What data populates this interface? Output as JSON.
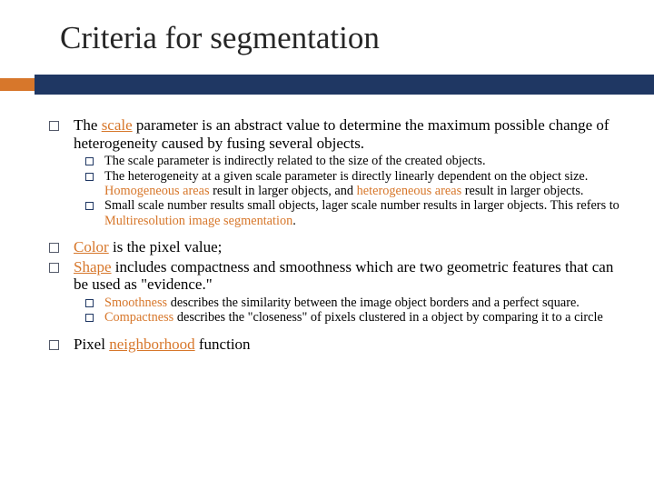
{
  "slide": {
    "title": "Criteria for segmentation",
    "title_fontsize": 35,
    "title_color": "#262626",
    "bar": {
      "orange": "#d7772b",
      "blue": "#1f3763",
      "orange_width": 38,
      "blue_height": 22,
      "orange_height": 14
    },
    "body_fontsize_l1": 17,
    "body_fontsize_l2": 14.3,
    "highlight_color": "#d7772b",
    "bullets": [
      {
        "text_parts": [
          {
            "t": "The ",
            "hl": false,
            "u": false
          },
          {
            "t": "scale",
            "hl": true,
            "u": true
          },
          {
            "t": " parameter is an abstract value to determine the maximum possible change of heterogeneity caused by fusing several objects.",
            "hl": false,
            "u": false
          }
        ],
        "children": [
          {
            "text_parts": [
              {
                "t": "The scale parameter is indirectly related to the size of the created objects.",
                "hl": false,
                "u": false
              }
            ]
          },
          {
            "text_parts": [
              {
                "t": "The heterogeneity at a given scale parameter is directly linearly dependent on the object size. ",
                "hl": false,
                "u": false
              },
              {
                "t": "Homogeneous areas",
                "hl": true,
                "u": false
              },
              {
                "t": " result in larger objects, and ",
                "hl": false,
                "u": false
              },
              {
                "t": "heterogeneous areas",
                "hl": true,
                "u": false
              },
              {
                "t": " result in larger objects.",
                "hl": false,
                "u": false
              }
            ]
          },
          {
            "text_parts": [
              {
                "t": "Small scale number results small objects, lager scale number results in larger objects. This refers to ",
                "hl": false,
                "u": false
              },
              {
                "t": "Multiresolution image segmentation",
                "hl": true,
                "u": false
              },
              {
                "t": ".",
                "hl": false,
                "u": false
              }
            ]
          }
        ]
      },
      {
        "text_parts": [
          {
            "t": "Color",
            "hl": true,
            "u": true
          },
          {
            "t": " is the pixel value;",
            "hl": false,
            "u": false
          }
        ],
        "children": []
      },
      {
        "text_parts": [
          {
            "t": "Shape",
            "hl": true,
            "u": true
          },
          {
            "t": " includes compactness and smoothness which are two geometric features that can be used as \"evidence.\"",
            "hl": false,
            "u": false
          }
        ],
        "children": [
          {
            "text_parts": [
              {
                "t": "Smoothness",
                "hl": true,
                "u": false
              },
              {
                "t": " describes the similarity between the image object borders and a perfect square.",
                "hl": false,
                "u": false
              }
            ]
          },
          {
            "text_parts": [
              {
                "t": "Compactness",
                "hl": true,
                "u": false
              },
              {
                "t": " describes the \"closeness\" of pixels clustered in a object by comparing it to a circle",
                "hl": false,
                "u": false
              }
            ]
          }
        ]
      },
      {
        "text_parts": [
          {
            "t": "Pixel ",
            "hl": false,
            "u": false
          },
          {
            "t": "neighborhood",
            "hl": true,
            "u": true
          },
          {
            "t": " function",
            "hl": false,
            "u": false
          }
        ],
        "children": []
      }
    ]
  }
}
